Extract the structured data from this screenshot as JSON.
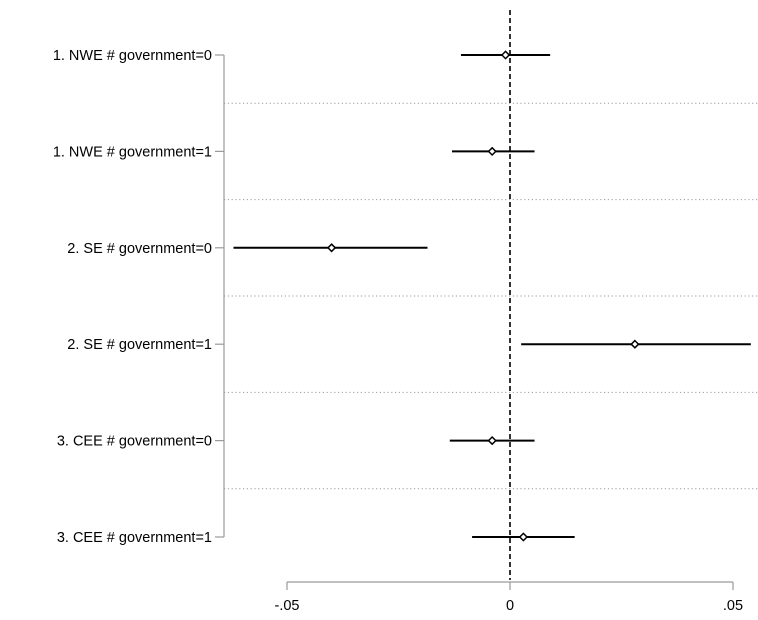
{
  "chart_data": {
    "type": "scatter",
    "subtype": "coefficient-plot-horizontal-ci",
    "title": "",
    "xlabel": "",
    "ylabel": "",
    "categories": [
      "1. NWE # government=0",
      "1. NWE # government=1",
      "2. SE # government=0",
      "2. SE # government=1",
      "3. CEE # government=0",
      "3. CEE # government=1"
    ],
    "estimates": [
      -0.001,
      -0.004,
      -0.04,
      0.028,
      -0.004,
      0.003
    ],
    "ci_low": [
      -0.011,
      -0.013,
      -0.062,
      0.0025,
      -0.0135,
      -0.0085
    ],
    "ci_high": [
      0.009,
      0.0055,
      -0.0185,
      0.054,
      0.0055,
      0.0145
    ],
    "xlim": [
      -0.063,
      0.056
    ],
    "x_ticks": [
      -0.05,
      0,
      0.05
    ],
    "x_tick_labels": [
      "-.05",
      "0",
      ".05"
    ],
    "reference_line": 0,
    "grid": "dotted separators between categories",
    "legend": "none",
    "colors": {
      "marker_fill": "#ffffff",
      "marker_stroke": "#000000",
      "ci_line": "#000000",
      "reference_line": "#000000",
      "axis": "#9a9a9a",
      "separator": "#9a9a9a",
      "text": "#000000"
    }
  }
}
